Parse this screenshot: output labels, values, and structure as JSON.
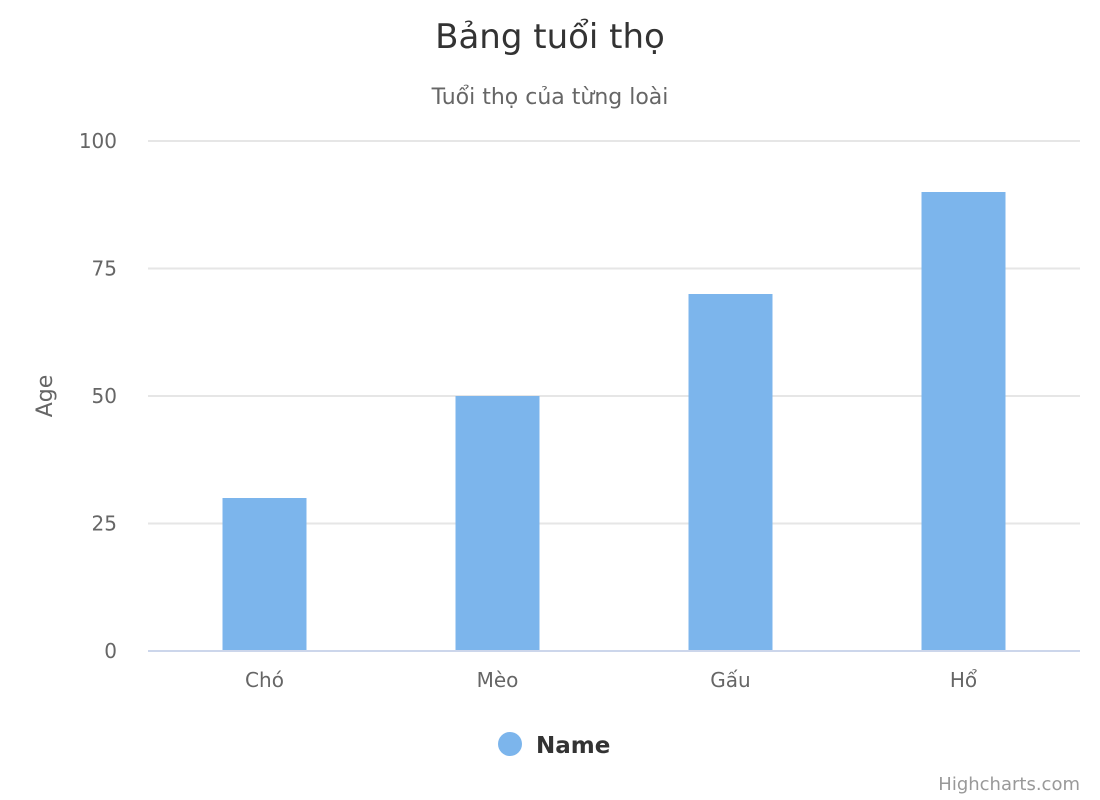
{
  "chart_data": {
    "type": "bar",
    "title": "Bảng tuổi thọ",
    "subtitle": "Tuổi thọ của từng loài",
    "categories": [
      "Chó",
      "Mèo",
      "Gấu",
      "Hổ"
    ],
    "series": [
      {
        "name": "Name",
        "values": [
          30,
          50,
          70,
          90
        ],
        "color": "#7cb5ec"
      }
    ],
    "xlabel": "",
    "ylabel": "Age",
    "ylim": [
      0,
      100
    ],
    "yticks": [
      0,
      25,
      50,
      75,
      100
    ],
    "grid": true,
    "legend_position": "bottom-center"
  },
  "credits": "Highcharts.com"
}
